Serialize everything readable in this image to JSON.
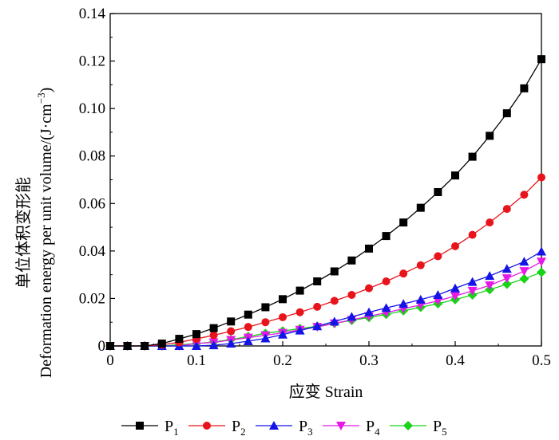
{
  "chart_data": {
    "type": "line",
    "title": "",
    "xlabel": "应变 Strain",
    "ylabel_cn": "单位体积变形能",
    "ylabel_en": "Deformation energy per unit volume/(J·cm",
    "ylabel_sup": "−3",
    "ylabel_close": ")",
    "xlim": [
      0,
      0.5
    ],
    "ylim": [
      0,
      0.14
    ],
    "xticks": [
      0,
      0.1,
      0.2,
      0.3,
      0.4,
      0.5
    ],
    "xtick_labels": [
      "0",
      "0.1",
      "0.2",
      "0.3",
      "0.4",
      "0.5"
    ],
    "yticks": [
      0,
      0.02,
      0.04,
      0.06,
      0.08,
      0.1,
      0.12,
      0.14
    ],
    "ytick_labels": [
      "0",
      "0.02",
      "0.04",
      "0.06",
      "0.08",
      "0.10",
      "0.12",
      "0.14"
    ],
    "legend_position": "bottom",
    "x": [
      0,
      0.02,
      0.04,
      0.06,
      0.08,
      0.1,
      0.12,
      0.14,
      0.16,
      0.18,
      0.2,
      0.22,
      0.24,
      0.26,
      0.28,
      0.3,
      0.32,
      0.34,
      0.36,
      0.38,
      0.4,
      0.42,
      0.44,
      0.46,
      0.48,
      0.5
    ],
    "series": [
      {
        "name": "P",
        "sub": "1",
        "color": "#000000",
        "marker": "square",
        "values": [
          0,
          0,
          0,
          0.001,
          0.003,
          0.005,
          0.0075,
          0.0103,
          0.0132,
          0.0163,
          0.0197,
          0.0233,
          0.0272,
          0.0314,
          0.036,
          0.041,
          0.0463,
          0.052,
          0.0582,
          0.0648,
          0.0718,
          0.0797,
          0.0885,
          0.098,
          0.1085,
          0.1208
        ]
      },
      {
        "name": "P",
        "sub": "2",
        "color": "#e8141c",
        "marker": "circle",
        "values": [
          0,
          0,
          0,
          0.0005,
          0.0015,
          0.003,
          0.0045,
          0.0062,
          0.008,
          0.01,
          0.0121,
          0.0142,
          0.0165,
          0.019,
          0.0215,
          0.0243,
          0.0272,
          0.0305,
          0.034,
          0.0378,
          0.042,
          0.0468,
          0.052,
          0.0577,
          0.0637,
          0.071
        ]
      },
      {
        "name": "P",
        "sub": "3",
        "color": "#1414e6",
        "marker": "triangle-up",
        "values": [
          0,
          0,
          0,
          0,
          0,
          0,
          0.0003,
          0.001,
          0.002,
          0.0032,
          0.0048,
          0.0065,
          0.0083,
          0.0103,
          0.0123,
          0.0142,
          0.016,
          0.0177,
          0.0195,
          0.0215,
          0.0243,
          0.027,
          0.0295,
          0.0325,
          0.0355,
          0.0398
        ]
      },
      {
        "name": "P",
        "sub": "4",
        "color": "#e619e6",
        "marker": "triangle-down",
        "values": [
          0,
          0,
          0,
          0,
          0,
          0.001,
          0.0015,
          0.0025,
          0.0035,
          0.0045,
          0.0055,
          0.0068,
          0.008,
          0.0095,
          0.011,
          0.0125,
          0.014,
          0.0157,
          0.0173,
          0.019,
          0.021,
          0.0232,
          0.0255,
          0.0285,
          0.0315,
          0.0355
        ]
      },
      {
        "name": "P",
        "sub": "5",
        "color": "#19d219",
        "marker": "diamond",
        "values": [
          0,
          0,
          0,
          0,
          0.0005,
          0.001,
          0.0017,
          0.0027,
          0.004,
          0.0053,
          0.0063,
          0.0073,
          0.0083,
          0.0095,
          0.0108,
          0.012,
          0.0133,
          0.0148,
          0.0163,
          0.0178,
          0.0195,
          0.0215,
          0.0237,
          0.026,
          0.0283,
          0.031
        ]
      }
    ]
  }
}
